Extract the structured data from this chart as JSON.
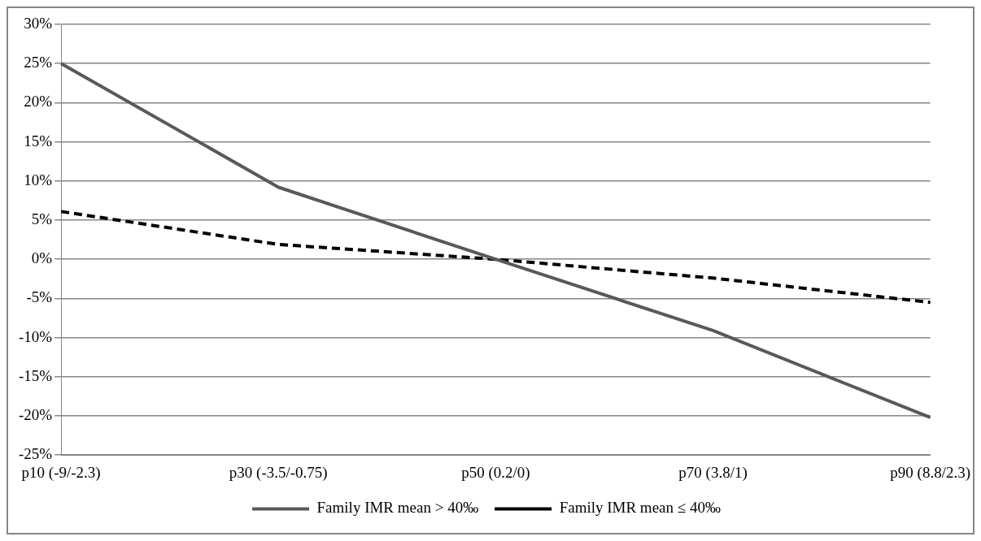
{
  "chart_data": {
    "type": "line",
    "categories": [
      "p10 (-9/-2.3)",
      "p30 (-3.5/-0.75)",
      "p50 (0.2/0)",
      "p70 (3.8/1)",
      "p90 (8.8/2.3)"
    ],
    "series": [
      {
        "name": "Family IMR mean > 40‰",
        "color": "#595959",
        "line_style": "solid",
        "values": [
          25,
          9.2,
          0,
          -9.1,
          -20.2
        ]
      },
      {
        "name": "Family IMR mean ≤ 40‰",
        "color": "#000000",
        "line_style": "dashed",
        "values": [
          6.1,
          1.9,
          0,
          -2.4,
          -5.5
        ]
      }
    ],
    "ylim": [
      -25,
      30
    ],
    "yticks": [
      {
        "value": -25,
        "label": "-25%"
      },
      {
        "value": -20,
        "label": "-20%"
      },
      {
        "value": -15,
        "label": "-15%"
      },
      {
        "value": -10,
        "label": "-10%"
      },
      {
        "value": -5,
        "label": "-5%"
      },
      {
        "value": 0,
        "label": "0%"
      },
      {
        "value": 5,
        "label": "5%"
      },
      {
        "value": 10,
        "label": "10%"
      },
      {
        "value": 15,
        "label": "15%"
      },
      {
        "value": 20,
        "label": "20%"
      },
      {
        "value": 25,
        "label": "25%"
      },
      {
        "value": 30,
        "label": "30%"
      }
    ],
    "grid": "y",
    "legend": "bottom",
    "marker": "none"
  }
}
